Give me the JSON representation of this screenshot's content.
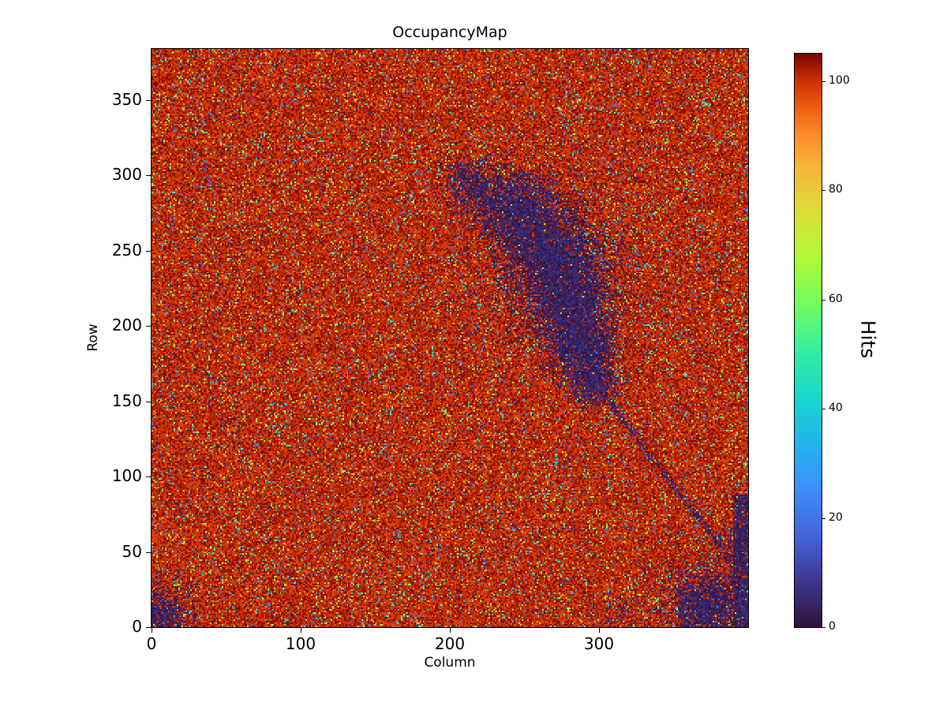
{
  "figure": {
    "title": "OccupancyMap"
  },
  "chart_data": {
    "type": "heatmap",
    "title": "OccupancyMap",
    "xlabel": "Column",
    "ylabel": "Row",
    "colorbar_label": "Hits",
    "grid": {
      "cols": 400,
      "rows": 384
    },
    "x_range": [
      0,
      400
    ],
    "y_range": [
      0,
      384
    ],
    "value_range": [
      0,
      105
    ],
    "x_ticks": [
      0,
      100,
      200,
      300
    ],
    "y_ticks": [
      0,
      50,
      100,
      150,
      200,
      250,
      300,
      350
    ],
    "colorbar_ticks": [
      0,
      20,
      40,
      60,
      80,
      100
    ],
    "colormap": "turbo",
    "colormap_stops": [
      [
        0.0,
        "#30123b"
      ],
      [
        0.08,
        "#3d3790"
      ],
      [
        0.16,
        "#4565da"
      ],
      [
        0.24,
        "#3e8efc"
      ],
      [
        0.32,
        "#22b4ec"
      ],
      [
        0.4,
        "#18d6cb"
      ],
      [
        0.48,
        "#35eda2"
      ],
      [
        0.56,
        "#6ffd62"
      ],
      [
        0.64,
        "#aefa37"
      ],
      [
        0.72,
        "#d9e036"
      ],
      [
        0.8,
        "#f6b73c"
      ],
      [
        0.86,
        "#fd8c29"
      ],
      [
        0.92,
        "#e8500f"
      ],
      [
        0.96,
        "#c22b03"
      ],
      [
        1.0,
        "#7a0403"
      ]
    ],
    "background": {
      "baseline_mean": 101,
      "baseline_jitter": 4,
      "noise_fraction": 0.13
    },
    "low_value_max": 8,
    "seed": 1234,
    "low_occupancy_regions": [
      {
        "shape": "gauss",
        "cx": 245,
        "cy": 275,
        "r": 14,
        "n": 2500
      },
      {
        "shape": "gauss",
        "cx": 268,
        "cy": 248,
        "r": 16,
        "n": 3500
      },
      {
        "shape": "gauss",
        "cx": 280,
        "cy": 215,
        "r": 14,
        "n": 3000
      },
      {
        "shape": "gauss",
        "cx": 288,
        "cy": 185,
        "r": 11,
        "n": 2000
      },
      {
        "shape": "gauss",
        "cx": 296,
        "cy": 162,
        "r": 8,
        "n": 900
      },
      {
        "shape": "gauss",
        "cx": 268,
        "cy": 235,
        "r": 42,
        "n": 1800
      },
      {
        "shape": "gauss",
        "cx": 210,
        "cy": 298,
        "r": 9,
        "n": 400
      },
      {
        "shape": "gauss",
        "cx": 222,
        "cy": 288,
        "r": 10,
        "n": 500
      },
      {
        "shape": "gauss",
        "cx": 4,
        "cy": 6,
        "r": 10,
        "n": 900
      },
      {
        "shape": "gauss",
        "cx": 8,
        "cy": 10,
        "r": 16,
        "n": 300
      },
      {
        "shape": "gauss",
        "cx": 372,
        "cy": 12,
        "r": 11,
        "n": 1800
      },
      {
        "shape": "gauss",
        "cx": 366,
        "cy": 20,
        "r": 22,
        "n": 700
      },
      {
        "shape": "gauss",
        "cx": 310,
        "cy": 2,
        "r": 10,
        "n": 200
      },
      {
        "shape": "rect",
        "x0": 390,
        "x1": 400,
        "y0": 0,
        "y1": 88,
        "density": 0.8
      },
      {
        "shape": "gauss",
        "cx": 394,
        "cy": 55,
        "r": 7,
        "n": 350
      },
      {
        "shape": "line",
        "x0": 305,
        "y0": 150,
        "x1": 388,
        "y1": 45,
        "n": 400,
        "jitter": 2.5
      }
    ]
  }
}
